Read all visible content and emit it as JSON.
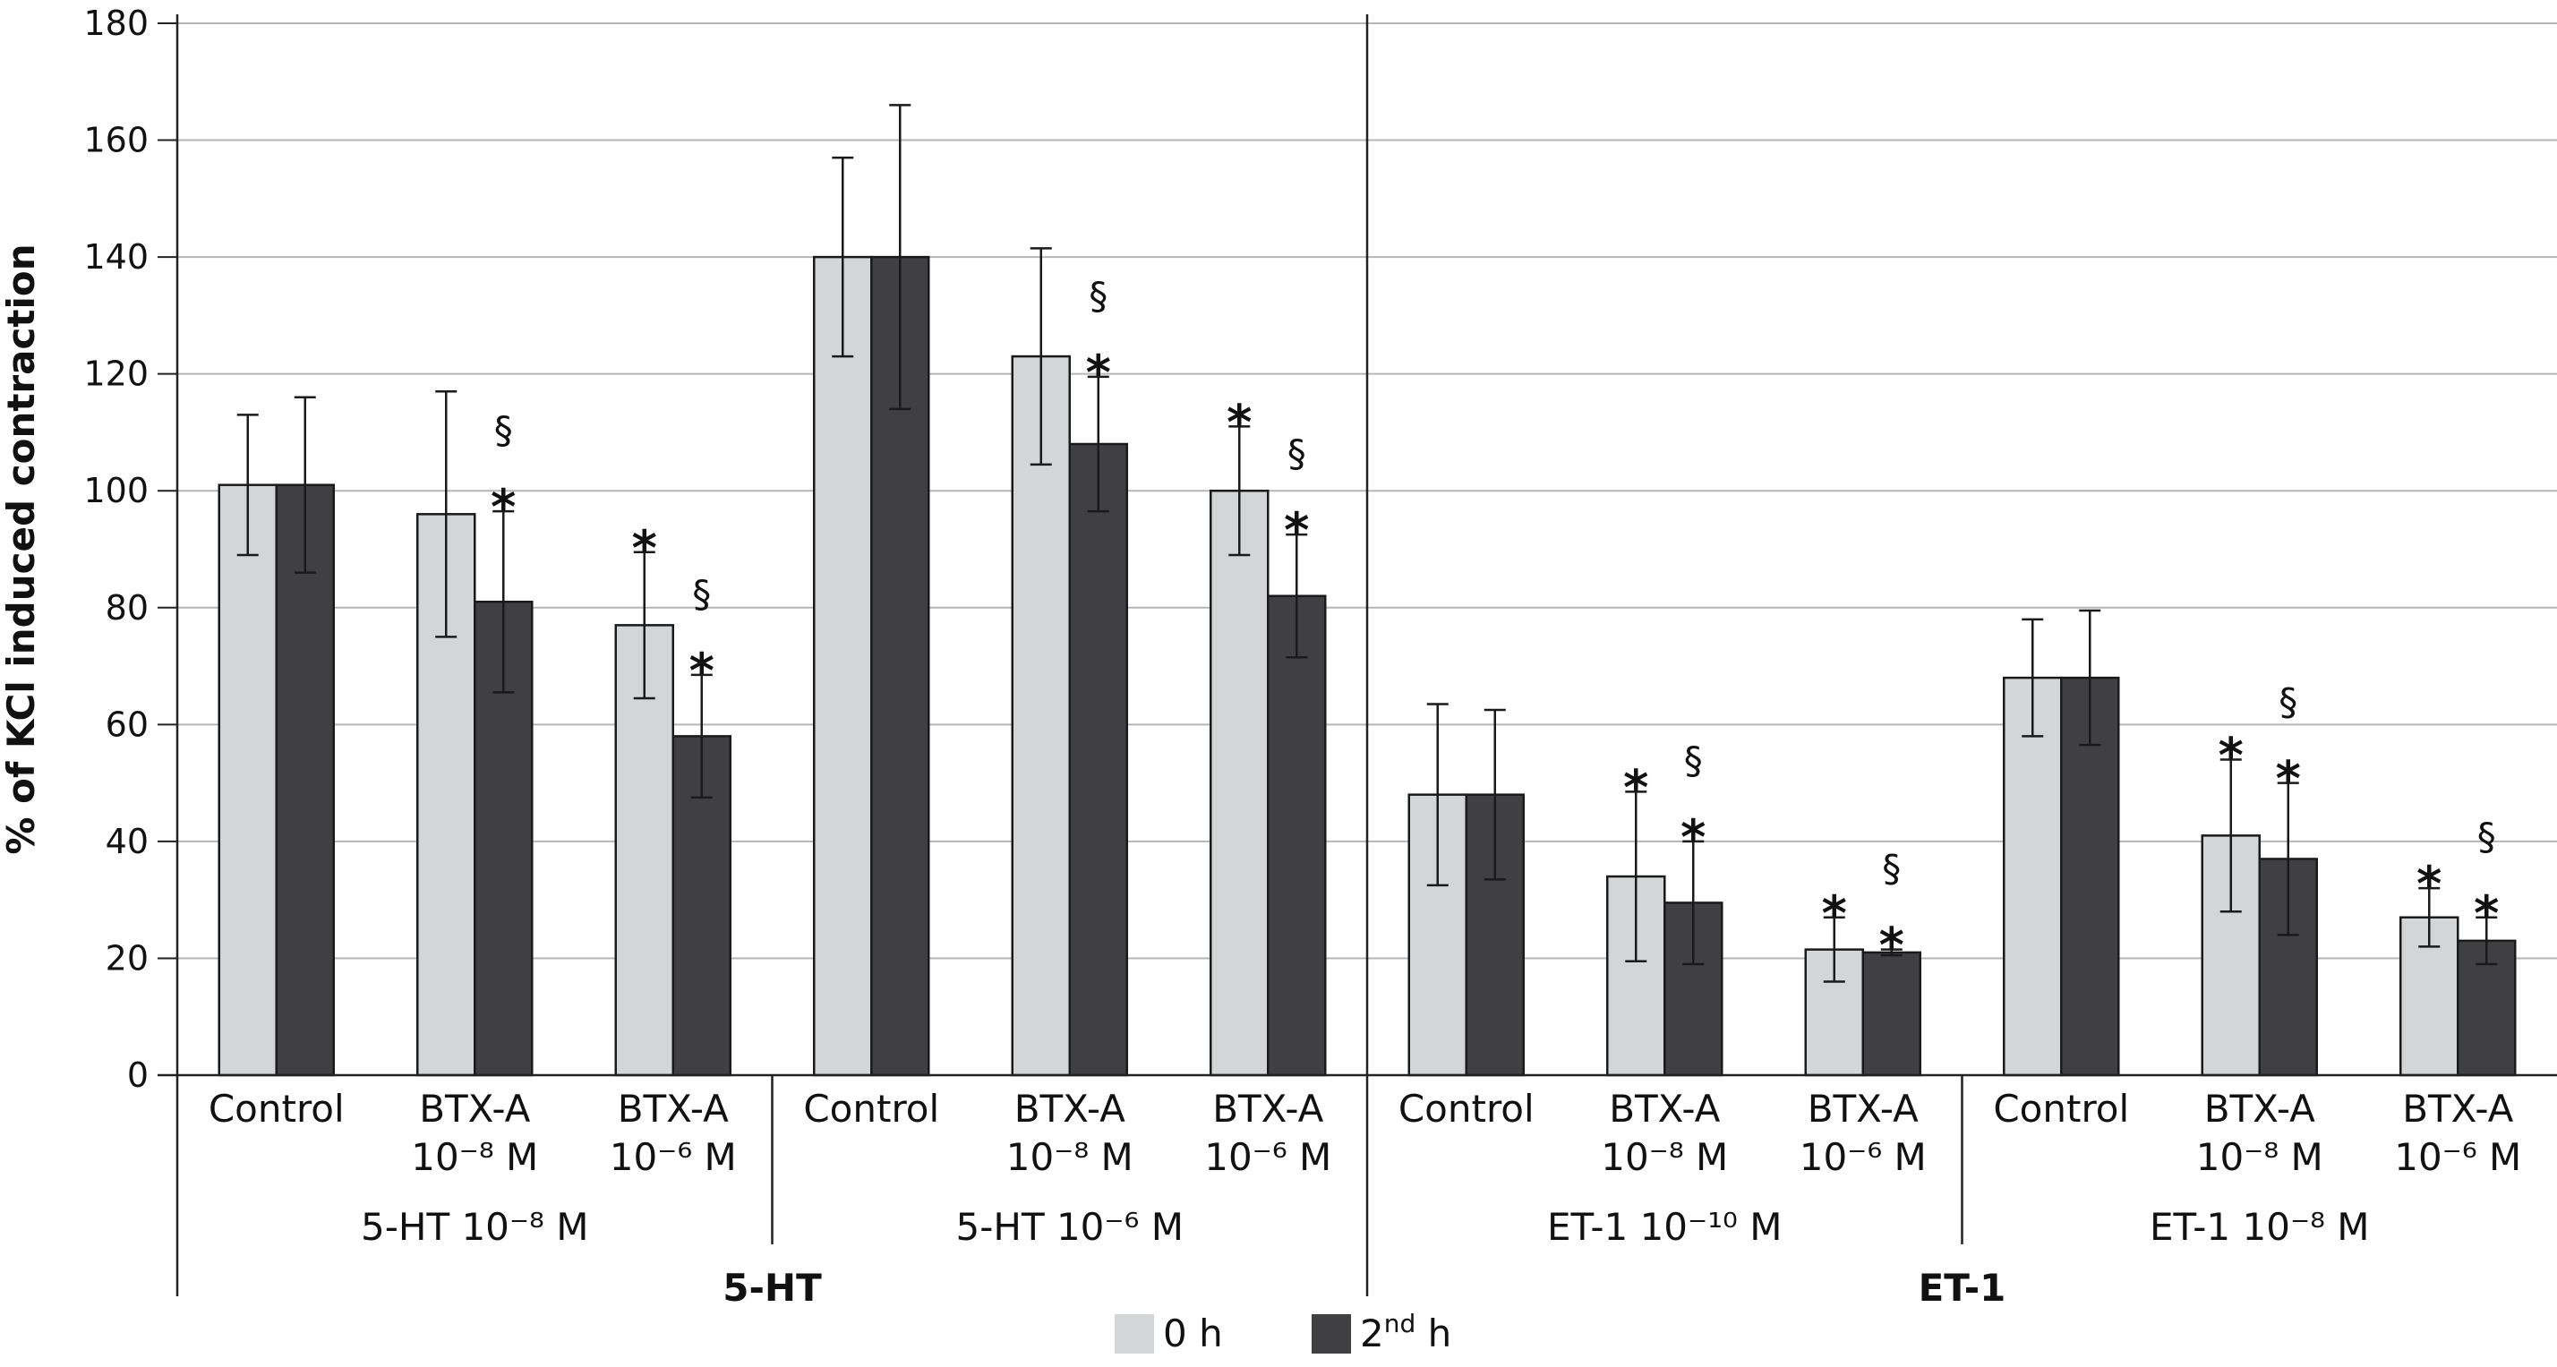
{
  "chart_data": {
    "type": "bar",
    "ylabel": "% of KCl induced contraction",
    "ylim": [
      0,
      180
    ],
    "yticks": [
      0,
      20,
      40,
      60,
      80,
      100,
      120,
      140,
      160,
      180
    ],
    "grid": true,
    "legend_position": "bottom-center",
    "series": [
      {
        "name": "0 h",
        "color": "#d4d5d7"
      },
      {
        "name": "2nd h",
        "name_base": "2",
        "name_sup": "nd",
        "name_tail": " h",
        "color": "#404042"
      }
    ],
    "categories": [
      {
        "label": [
          "Control"
        ],
        "group": 0,
        "values": [
          101,
          101
        ],
        "errors": [
          12,
          15
        ],
        "marks": [
          [],
          []
        ]
      },
      {
        "label": [
          "BTX-A",
          "10⁻⁸ M"
        ],
        "group": 0,
        "values": [
          96,
          81
        ],
        "errors": [
          21,
          15.5
        ],
        "marks": [
          [],
          [
            "§",
            "*"
          ]
        ]
      },
      {
        "label": [
          "BTX-A",
          "10⁻⁶ M"
        ],
        "group": 0,
        "values": [
          77,
          58
        ],
        "errors": [
          12.5,
          10.5
        ],
        "marks": [
          [
            "*"
          ],
          [
            "§",
            "*"
          ]
        ]
      },
      {
        "label": [
          "Control"
        ],
        "group": 1,
        "values": [
          140,
          140
        ],
        "errors": [
          17,
          26
        ],
        "marks": [
          [],
          []
        ]
      },
      {
        "label": [
          "BTX-A",
          "10⁻⁸ M"
        ],
        "group": 1,
        "values": [
          123,
          108
        ],
        "errors": [
          18.5,
          11.5
        ],
        "marks": [
          [],
          [
            "§",
            "*"
          ]
        ]
      },
      {
        "label": [
          "BTX-A",
          "10⁻⁶ M"
        ],
        "group": 1,
        "values": [
          100,
          82
        ],
        "errors": [
          11,
          10.5
        ],
        "marks": [
          [
            "*"
          ],
          [
            "§",
            "*"
          ]
        ]
      },
      {
        "label": [
          "Control"
        ],
        "group": 2,
        "values": [
          48,
          48
        ],
        "errors": [
          15.5,
          14.5
        ],
        "marks": [
          [],
          []
        ]
      },
      {
        "label": [
          "BTX-A",
          "10⁻⁸ M"
        ],
        "group": 2,
        "values": [
          34,
          29.5
        ],
        "errors": [
          14.5,
          10.5
        ],
        "marks": [
          [
            "*"
          ],
          [
            "§",
            "*"
          ]
        ]
      },
      {
        "label": [
          "BTX-A",
          "10⁻⁶ M"
        ],
        "group": 2,
        "values": [
          21.5,
          21
        ],
        "errors": [
          5.5,
          0.5
        ],
        "marks": [
          [
            "*"
          ],
          [
            "§",
            "*"
          ]
        ]
      },
      {
        "label": [
          "Control"
        ],
        "group": 3,
        "values": [
          68,
          68
        ],
        "errors": [
          10,
          11.5
        ],
        "marks": [
          [],
          []
        ]
      },
      {
        "label": [
          "BTX-A",
          "10⁻⁸ M"
        ],
        "group": 3,
        "values": [
          41,
          37
        ],
        "errors": [
          13,
          13
        ],
        "marks": [
          [
            "*"
          ],
          [
            "§",
            "*"
          ]
        ]
      },
      {
        "label": [
          "BTX-A",
          "10⁻⁶ M"
        ],
        "group": 3,
        "values": [
          27,
          23
        ],
        "errors": [
          5,
          4
        ],
        "marks": [
          [
            "*"
          ],
          [
            "§",
            "*"
          ]
        ]
      }
    ],
    "groups": [
      {
        "label": "5-HT 10⁻⁸ M",
        "super": 0
      },
      {
        "label": "5-HT 10⁻⁶ M",
        "super": 0
      },
      {
        "label": "ET-1 10⁻¹⁰ M",
        "super": 1
      },
      {
        "label": "ET-1 10⁻⁸ M",
        "super": 1
      }
    ],
    "super_groups": [
      "5-HT",
      "ET-1"
    ]
  }
}
